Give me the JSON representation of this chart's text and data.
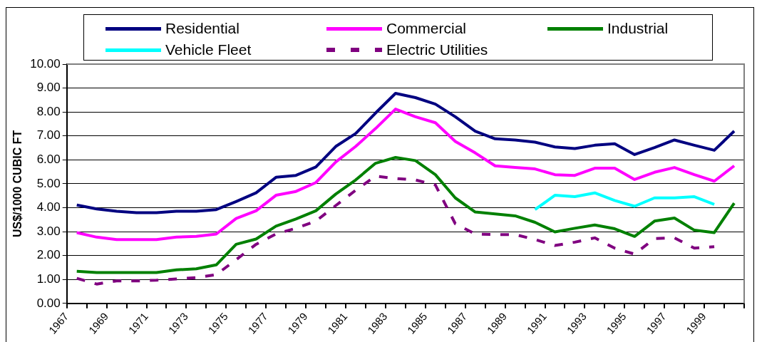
{
  "chart_data": {
    "type": "line",
    "ylabel": "US$/1000 CUBIC FT",
    "x": [
      1967.5,
      1968.5,
      1969.5,
      1970.5,
      1971.5,
      1972.5,
      1973.5,
      1974.5,
      1975.5,
      1976.5,
      1977.5,
      1978.5,
      1979.5,
      1980.5,
      1981.5,
      1982.5,
      1983.5,
      1984.5,
      1985.5,
      1986.5,
      1987.5,
      1988.5,
      1989.5,
      1990.5,
      1991.5,
      1992.5,
      1993.5,
      1994.5,
      1995.5,
      1996.5,
      1997.5,
      1998.5,
      1999.5,
      2000.5
    ],
    "series": [
      {
        "name": "Residential",
        "color": "#000080",
        "values": [
          4.11,
          3.95,
          3.85,
          3.79,
          3.79,
          3.85,
          3.85,
          3.92,
          4.26,
          4.62,
          5.27,
          5.35,
          5.7,
          6.56,
          7.1,
          7.96,
          8.78,
          8.6,
          8.33,
          7.8,
          7.2,
          6.88,
          6.83,
          6.74,
          6.54,
          6.47,
          6.61,
          6.67,
          6.22,
          6.51,
          6.83,
          6.61,
          6.4,
          7.2
        ]
      },
      {
        "name": "Commercial",
        "color": "#ff00ff",
        "values": [
          2.96,
          2.77,
          2.67,
          2.67,
          2.67,
          2.77,
          2.8,
          2.9,
          3.55,
          3.87,
          4.52,
          4.68,
          5.05,
          5.91,
          6.56,
          7.31,
          8.12,
          7.8,
          7.55,
          6.77,
          6.29,
          5.75,
          5.68,
          5.62,
          5.38,
          5.35,
          5.65,
          5.65,
          5.18,
          5.48,
          5.68,
          5.38,
          5.11,
          5.75
        ]
      },
      {
        "name": "Industrial",
        "color": "#008000",
        "values": [
          1.34,
          1.29,
          1.29,
          1.29,
          1.29,
          1.4,
          1.45,
          1.61,
          2.47,
          2.69,
          3.23,
          3.53,
          3.87,
          4.57,
          5.16,
          5.86,
          6.1,
          5.97,
          5.38,
          4.41,
          3.82,
          3.74,
          3.66,
          3.39,
          2.99,
          3.14,
          3.28,
          3.12,
          2.8,
          3.44,
          3.57,
          3.06,
          2.96,
          4.19
        ]
      },
      {
        "name": "Vehicle Fleet",
        "color": "#00ffff",
        "values": [
          null,
          null,
          null,
          null,
          null,
          null,
          null,
          null,
          null,
          null,
          null,
          null,
          null,
          null,
          null,
          null,
          null,
          null,
          null,
          null,
          null,
          null,
          null,
          3.92,
          4.52,
          4.46,
          4.62,
          4.3,
          4.06,
          4.41,
          4.41,
          4.46,
          4.14,
          null
        ]
      },
      {
        "name": "Electric Utilities",
        "color": "#800080",
        "line_style": "dashed",
        "values": [
          1.05,
          0.81,
          0.94,
          0.94,
          0.97,
          1.02,
          1.08,
          1.2,
          1.83,
          2.47,
          2.9,
          3.14,
          3.44,
          4.09,
          4.73,
          5.32,
          5.22,
          5.16,
          4.95,
          3.33,
          2.9,
          2.88,
          2.88,
          2.67,
          2.42,
          2.56,
          2.74,
          2.31,
          2.06,
          2.71,
          2.74,
          2.31,
          2.37,
          null
        ]
      }
    ],
    "xlim": [
      1967,
      2001
    ],
    "xticks": [
      1967,
      {
        "value": 1968,
        "label": null
      },
      1969,
      {
        "value": 1970,
        "label": null
      },
      1971,
      {
        "value": 1972,
        "label": null
      },
      1973,
      {
        "value": 1974,
        "label": null
      },
      1975,
      {
        "value": 1976,
        "label": null
      },
      1977,
      {
        "value": 1978,
        "label": null
      },
      1979,
      {
        "value": 1980,
        "label": null
      },
      1981,
      {
        "value": 1982,
        "label": null
      },
      1983,
      {
        "value": 1984,
        "label": null
      },
      1985,
      {
        "value": 1986,
        "label": null
      },
      1987,
      {
        "value": 1988,
        "label": null
      },
      1989,
      {
        "value": 1990,
        "label": null
      },
      1991,
      {
        "value": 1992,
        "label": null
      },
      1993,
      {
        "value": 1994,
        "label": null
      },
      1995,
      {
        "value": 1996,
        "label": null
      },
      1997,
      {
        "value": 1998,
        "label": null
      },
      1999,
      {
        "value": 2000,
        "label": null
      },
      {
        "value": 2001,
        "label": null
      }
    ],
    "ylim": [
      0,
      10
    ],
    "yticks": [
      {
        "value": 0,
        "label": "0.00"
      },
      {
        "value": 1,
        "label": "1.00"
      },
      {
        "value": 2,
        "label": "2.00"
      },
      {
        "value": 3,
        "label": "3.00"
      },
      {
        "value": 4,
        "label": "4.00"
      },
      {
        "value": 5,
        "label": "5.00"
      },
      {
        "value": 6,
        "label": "6.00"
      },
      {
        "value": 7,
        "label": "7.00"
      },
      {
        "value": 8,
        "label": "8.00"
      },
      {
        "value": 9,
        "label": "9.00"
      },
      {
        "value": 10,
        "label": "10.00"
      }
    ],
    "grid": "y",
    "legend": "top",
    "marker": "none",
    "line_style": "solid"
  }
}
